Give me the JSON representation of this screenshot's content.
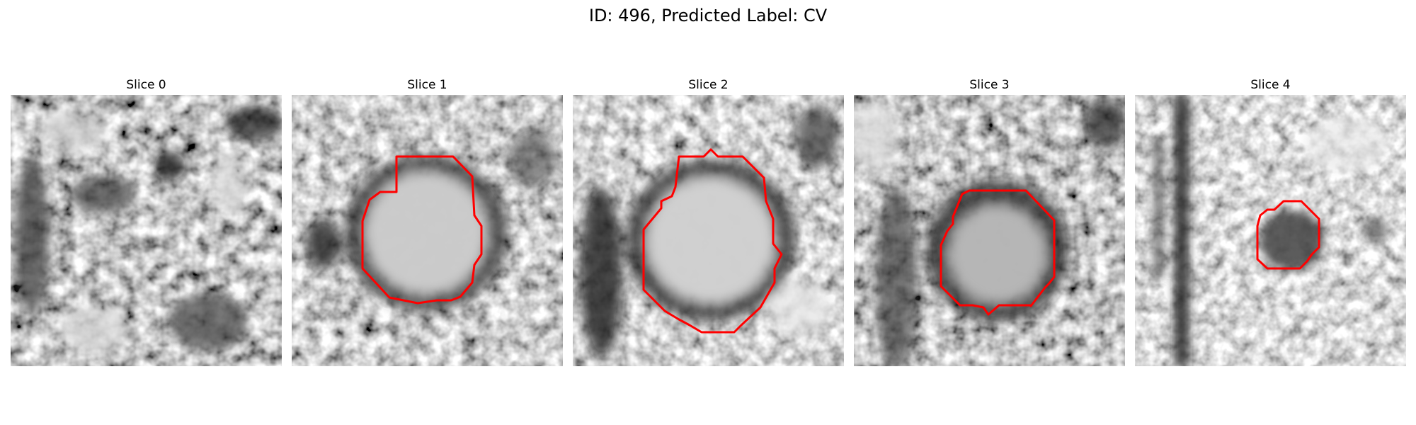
{
  "figure": {
    "title": "ID: 496, Predicted Label: CV"
  },
  "colors": {
    "contour": "#ff0000",
    "background": "#ffffff"
  },
  "slices": [
    {
      "title": "Slice 0",
      "has_contour": false
    },
    {
      "title": "Slice 1",
      "has_contour": true
    },
    {
      "title": "Slice 2",
      "has_contour": true
    },
    {
      "title": "Slice 3",
      "has_contour": true
    },
    {
      "title": "Slice 4",
      "has_contour": true
    }
  ]
}
